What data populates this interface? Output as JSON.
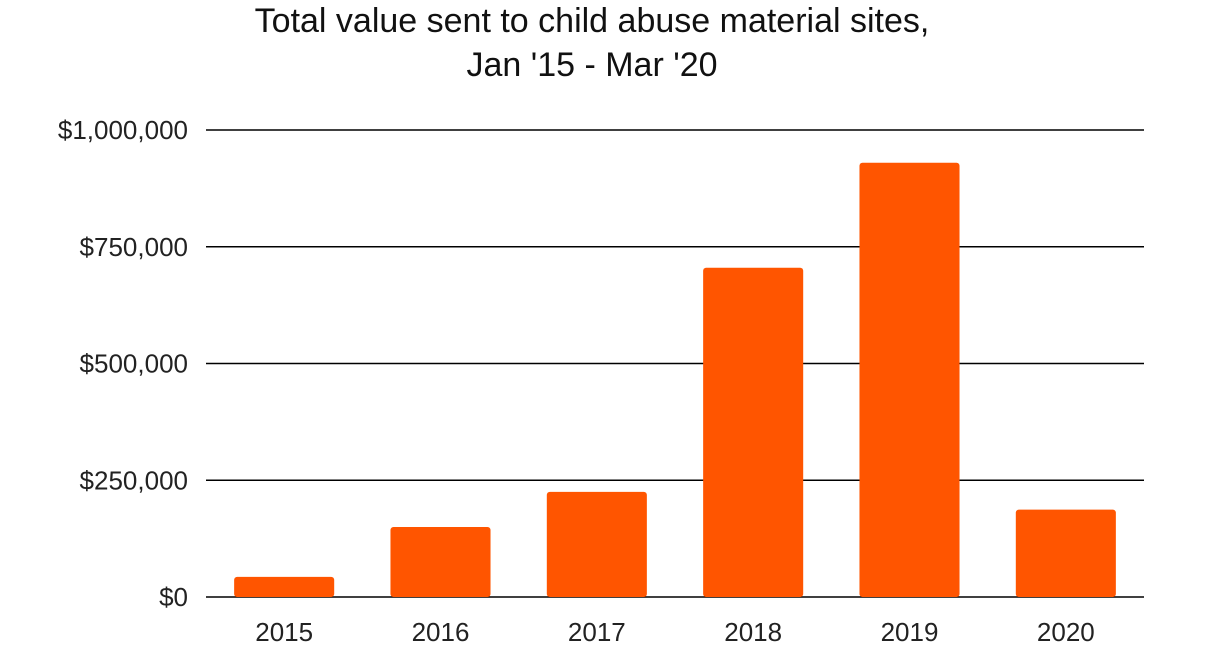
{
  "chart_data": {
    "type": "bar",
    "title_lines": [
      "Total value sent to child abuse material sites,",
      "Jan '15 - Mar '20"
    ],
    "xlabel": "",
    "ylabel": "",
    "categories": [
      "2015",
      "2016",
      "2017",
      "2018",
      "2019",
      "2020"
    ],
    "values": [
      43000,
      150000,
      225000,
      705000,
      930000,
      187000
    ],
    "ylim": [
      0,
      1000000
    ],
    "yticks": [
      0,
      250000,
      500000,
      750000,
      1000000
    ],
    "ytick_labels": [
      "$0",
      "$250,000",
      "$500,000",
      "$750,000",
      "$1,000,000"
    ],
    "grid": true,
    "legend": "none",
    "bar_color": "#FF5500",
    "grid_color": "#000000"
  }
}
